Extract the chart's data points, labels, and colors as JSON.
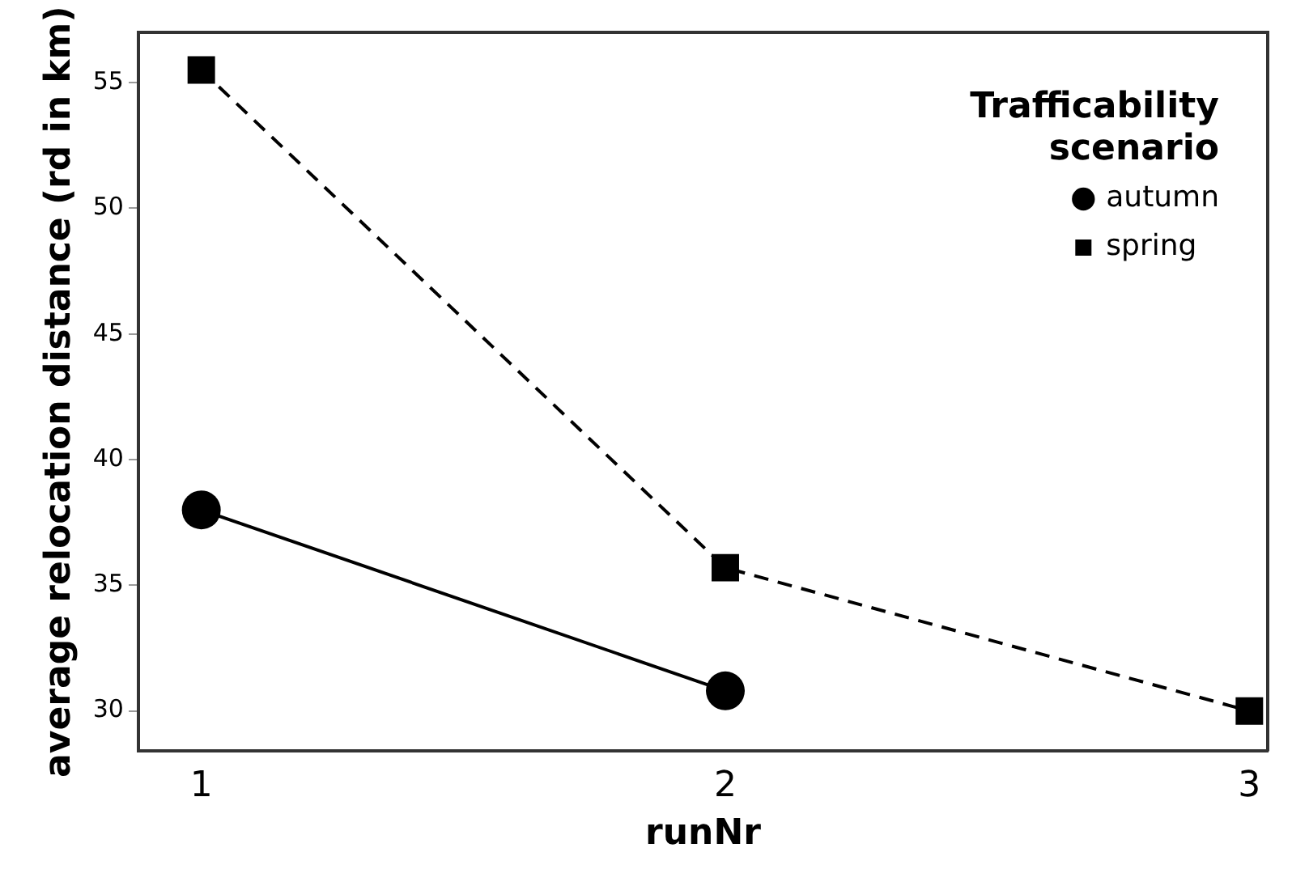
{
  "chart_data": {
    "type": "line",
    "xlabel": "runNr",
    "ylabel": "average relocation distance (rd in km)",
    "legend_title": "Trafficability scenario",
    "x": [
      1,
      2,
      3
    ],
    "xlim": [
      0.88,
      3.035
    ],
    "xticks": [
      1,
      2,
      3
    ],
    "ylim": [
      28.4,
      57
    ],
    "yticks": [
      30,
      35,
      40,
      45,
      50,
      55
    ],
    "series": [
      {
        "name": "autumn",
        "color": "#000000",
        "x": [
          1,
          2
        ],
        "values": [
          38.0,
          30.8
        ],
        "marker": "circle",
        "line_style": "solid"
      },
      {
        "name": "spring",
        "color": "#000000",
        "values": [
          55.5,
          35.7,
          30.0
        ],
        "marker": "square",
        "line_style": "dashed"
      }
    ],
    "grid": false,
    "legend": "top right"
  }
}
